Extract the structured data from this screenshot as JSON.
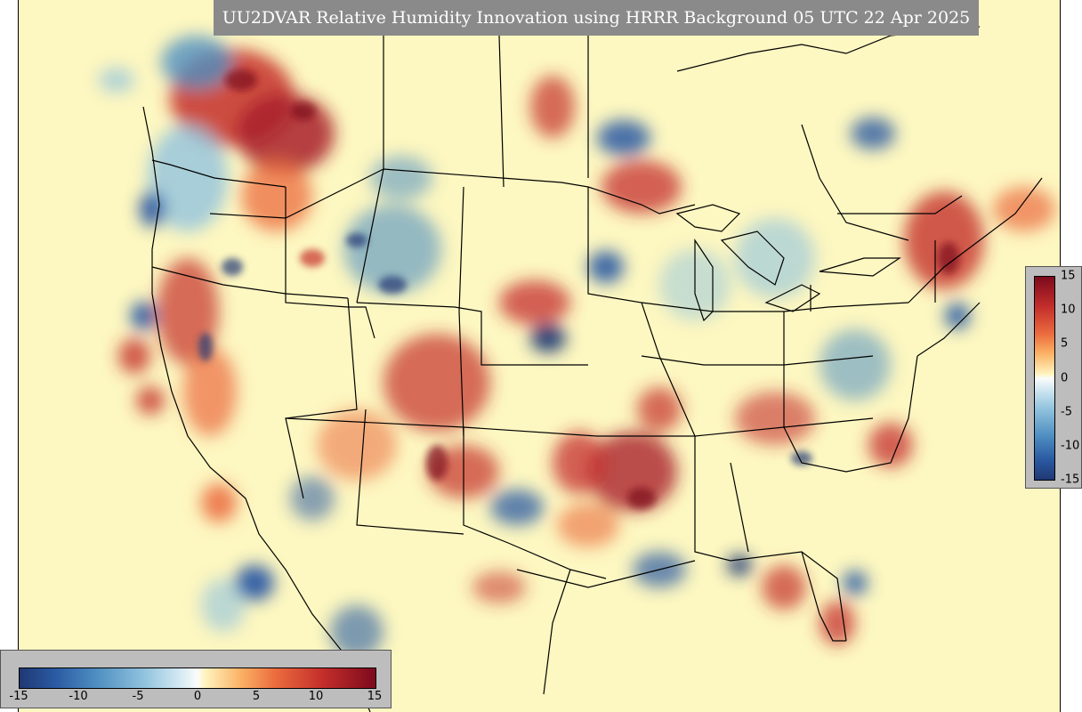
{
  "title": "UU2DVAR Relative Humidity Innovation using HRRR Background 05 UTC 22 Apr 2025",
  "colorbar": {
    "vertical_ticks": [
      "15",
      "10",
      "5",
      "0",
      "-5",
      "-10",
      "-15"
    ],
    "horizontal_ticks": [
      "-15",
      "-10",
      "-5",
      "0",
      "5",
      "10",
      "15"
    ],
    "range": [
      -15,
      15
    ],
    "colors": {
      "max": "#7d0a1d",
      "high": "#c42f2b",
      "mid_high": "#fbb366",
      "neutral": "#fdf7c1",
      "mid_low": "#91c3de",
      "low": "#2a5aa3",
      "min": "#203873"
    }
  },
  "map": {
    "background_color": "#fdf7c1",
    "title_bar_color": "#8a8a8a",
    "legend_panel_color": "#bdbdbd"
  }
}
